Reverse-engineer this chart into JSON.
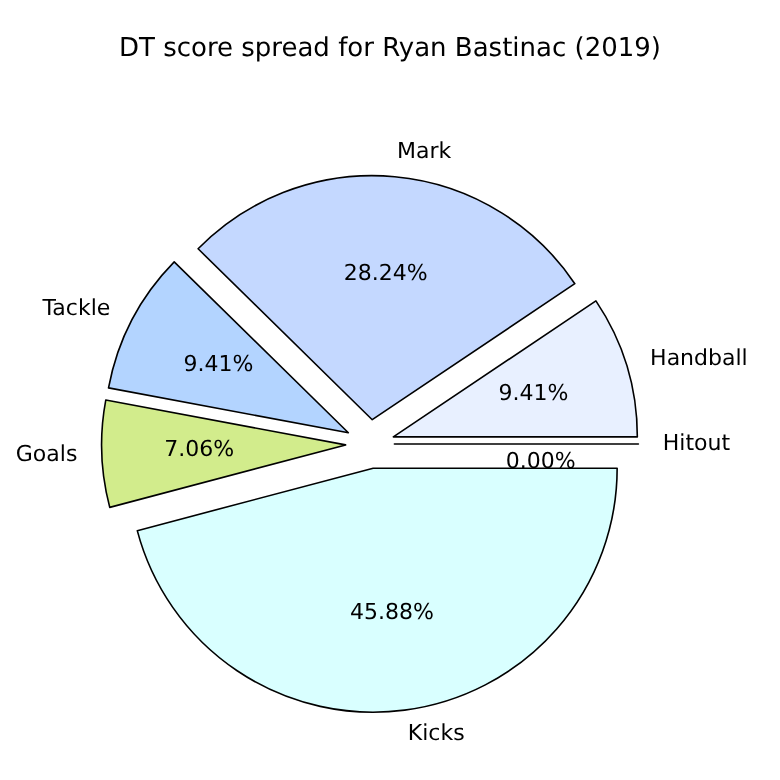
{
  "chart_data": {
    "type": "pie",
    "title": "DT score spread for Ryan Bastinac (2019)",
    "categories": [
      "Handball",
      "Mark",
      "Tackle",
      "Goals",
      "Kicks",
      "Hitout"
    ],
    "values": [
      9.41,
      28.24,
      9.41,
      7.06,
      45.88,
      0
    ],
    "value_labels": [
      "9.41%",
      "28.24%",
      "9.41%",
      "7.06%",
      "45.88%",
      "0.00%"
    ],
    "colors": [
      "#e8f0ff",
      "#c4d8ff",
      "#b3d4ff",
      "#d2ec8c",
      "#d9ffff",
      "#ffe0e0"
    ]
  }
}
